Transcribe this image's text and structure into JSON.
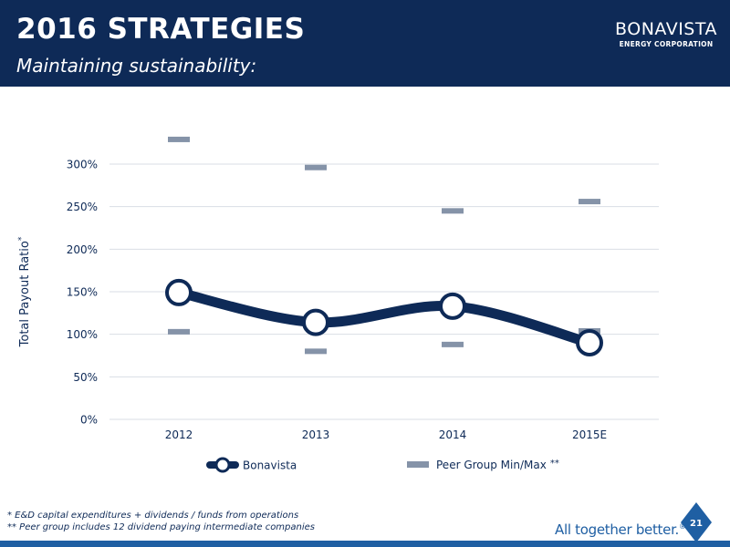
{
  "header": {
    "title": "2016 STRATEGIES",
    "subtitle": "Maintaining sustainability:",
    "logo_name": "BONAVISTA",
    "logo_sub": "ENERGY CORPORATION"
  },
  "chart_data": {
    "type": "line",
    "ylabel": "Total Payout Ratio",
    "ylabel_marker": "*",
    "categories": [
      "2012",
      "2013",
      "2014",
      "2015E"
    ],
    "yticks": [
      "0%",
      "50%",
      "100%",
      "150%",
      "200%",
      "250%",
      "300%"
    ],
    "ylim": [
      0,
      300
    ],
    "grid": true,
    "legend_position": "bottom",
    "series": [
      {
        "name": "Bonavista",
        "type": "line",
        "color": "#0e2a57",
        "values": [
          149,
          114,
          133,
          90
        ]
      },
      {
        "name": "Peer Group Min/Max",
        "name_marker": "**",
        "type": "range-markers",
        "color": "#8593a8",
        "min": [
          103,
          80,
          88,
          104
        ],
        "max": [
          329,
          296,
          245,
          256
        ]
      }
    ]
  },
  "footnotes": [
    "* E&D capital expenditures + dividends / funds from operations",
    "** Peer group includes 12 dividend paying intermediate companies"
  ],
  "footer": {
    "tagline": "All together better.",
    "tagline_mark": "®",
    "page_number": "21"
  },
  "colors": {
    "navy": "#0e2a57",
    "accent_blue": "#1f5fa3",
    "peer_gray": "#8593a8",
    "grid": "#d9dee5"
  }
}
